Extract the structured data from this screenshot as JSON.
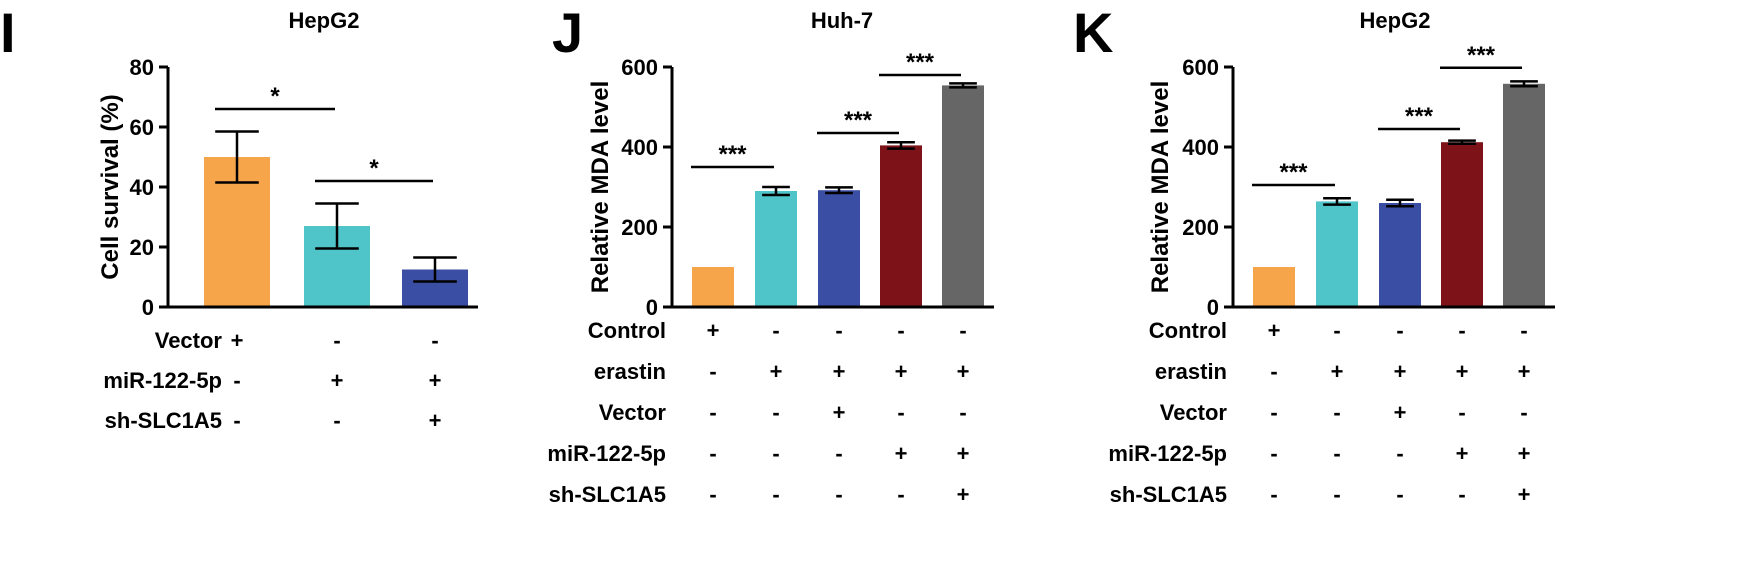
{
  "chart_data": [
    {
      "type": "bar",
      "panel_label": "I",
      "title": "HepG2",
      "ylabel": "Cell survival (%)",
      "xlabel": "",
      "ylim": [
        0,
        80
      ],
      "yticks": [
        0,
        20,
        40,
        60,
        80
      ],
      "series": [
        {
          "name": "Cell survival (%)",
          "values": [
            50,
            27,
            12.5
          ],
          "errors": [
            8.5,
            7.5,
            4
          ]
        }
      ],
      "colors": [
        "#F7A54A",
        "#4FC5C9",
        "#3A4EA3"
      ],
      "significance": [
        {
          "from": 0,
          "to": 1,
          "label": "*",
          "y": 66
        },
        {
          "from": 1,
          "to": 2,
          "label": "*",
          "y": 42
        }
      ],
      "conditions": [
        {
          "label": "Vector",
          "values": [
            "+",
            "-",
            "-"
          ]
        },
        {
          "label": "miR-122-5p",
          "values": [
            "-",
            "+",
            "+"
          ]
        },
        {
          "label": "sh-SLC1A5",
          "values": [
            "-",
            "-",
            "+"
          ]
        }
      ]
    },
    {
      "type": "bar",
      "panel_label": "J",
      "title": "Huh-7",
      "ylabel": "Relative MDA level",
      "xlabel": "",
      "ylim": [
        0,
        600
      ],
      "yticks": [
        0,
        200,
        400,
        600
      ],
      "series": [
        {
          "name": "Relative MDA level",
          "values": [
            100,
            290,
            292,
            404,
            554
          ],
          "errors": [
            0,
            10,
            7,
            8,
            5
          ]
        }
      ],
      "colors": [
        "#F7A54A",
        "#4FC5C9",
        "#3A4EA3",
        "#7D1318",
        "#666666"
      ],
      "significance": [
        {
          "from": 0,
          "to": 1,
          "label": "***",
          "y": 350
        },
        {
          "from": 2,
          "to": 3,
          "label": "***",
          "y": 435
        },
        {
          "from": 3,
          "to": 4,
          "label": "***",
          "y": 580
        }
      ],
      "conditions": [
        {
          "label": "Control",
          "values": [
            "+",
            "-",
            "-",
            "-",
            "-"
          ]
        },
        {
          "label": "erastin",
          "values": [
            "-",
            "+",
            "+",
            "+",
            "+"
          ]
        },
        {
          "label": "Vector",
          "values": [
            "-",
            "-",
            "+",
            "-",
            "-"
          ]
        },
        {
          "label": "miR-122-5p",
          "values": [
            "-",
            "-",
            "-",
            "+",
            "+"
          ]
        },
        {
          "label": "sh-SLC1A5",
          "values": [
            "-",
            "-",
            "-",
            "-",
            "+"
          ]
        }
      ]
    },
    {
      "type": "bar",
      "panel_label": "K",
      "title": "HepG2",
      "ylabel": "Relative MDA level",
      "xlabel": "",
      "ylim": [
        0,
        600
      ],
      "yticks": [
        0,
        200,
        400,
        600
      ],
      "series": [
        {
          "name": "Relative MDA level",
          "values": [
            100,
            264,
            260,
            412,
            558
          ],
          "errors": [
            0,
            8,
            8,
            4,
            6
          ]
        }
      ],
      "colors": [
        "#F7A54A",
        "#4FC5C9",
        "#3A4EA3",
        "#7D1318",
        "#666666"
      ],
      "significance": [
        {
          "from": 0,
          "to": 1,
          "label": "***",
          "y": 305
        },
        {
          "from": 2,
          "to": 3,
          "label": "***",
          "y": 445
        },
        {
          "from": 3,
          "to": 4,
          "label": "***",
          "y": 598
        }
      ],
      "conditions": [
        {
          "label": "Control",
          "values": [
            "+",
            "-",
            "-",
            "-",
            "-"
          ]
        },
        {
          "label": "erastin",
          "values": [
            "-",
            "+",
            "+",
            "+",
            "+"
          ]
        },
        {
          "label": "Vector",
          "values": [
            "-",
            "-",
            "+",
            "-",
            "-"
          ]
        },
        {
          "label": "miR-122-5p",
          "values": [
            "-",
            "-",
            "-",
            "+",
            "+"
          ]
        },
        {
          "label": "sh-SLC1A5",
          "values": [
            "-",
            "-",
            "-",
            "-",
            "+"
          ]
        }
      ]
    }
  ]
}
